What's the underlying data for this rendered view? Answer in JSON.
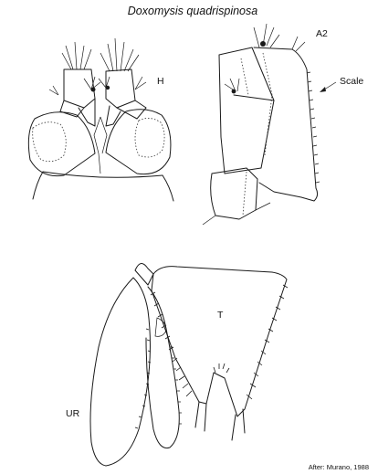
{
  "figure": {
    "title": "Doxomysis quadrispinosa",
    "labels": {
      "head": "H",
      "antenna2": "A2",
      "scale": "Scale",
      "telson": "T",
      "uropod": "UR"
    },
    "credit": "After: Murano, 1988"
  }
}
